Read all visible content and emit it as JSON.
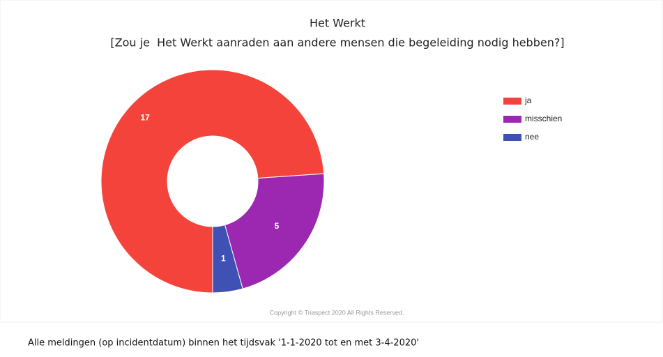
{
  "chart_data": {
    "type": "donut",
    "title": "Het Werkt",
    "subtitle": "[Zou je  Het Werkt aanraden aan andere mensen die begeleiding nodig hebben?]",
    "series": [
      {
        "name": "ja",
        "color": "#f4433b",
        "values": [
          17
        ]
      },
      {
        "name": "misschien",
        "color": "#9c27b0",
        "values": [
          5
        ]
      },
      {
        "name": "nee",
        "color": "#3f51b5",
        "values": [
          1
        ]
      }
    ],
    "legend": "right",
    "copyright": "Copyright © Triaspect 2020 All Rights Reserved.",
    "footnote": "Alle meldingen (op incidentdatum) binnen het tijdsvak '1-1-2020 tot en met 3-4-2020'"
  }
}
